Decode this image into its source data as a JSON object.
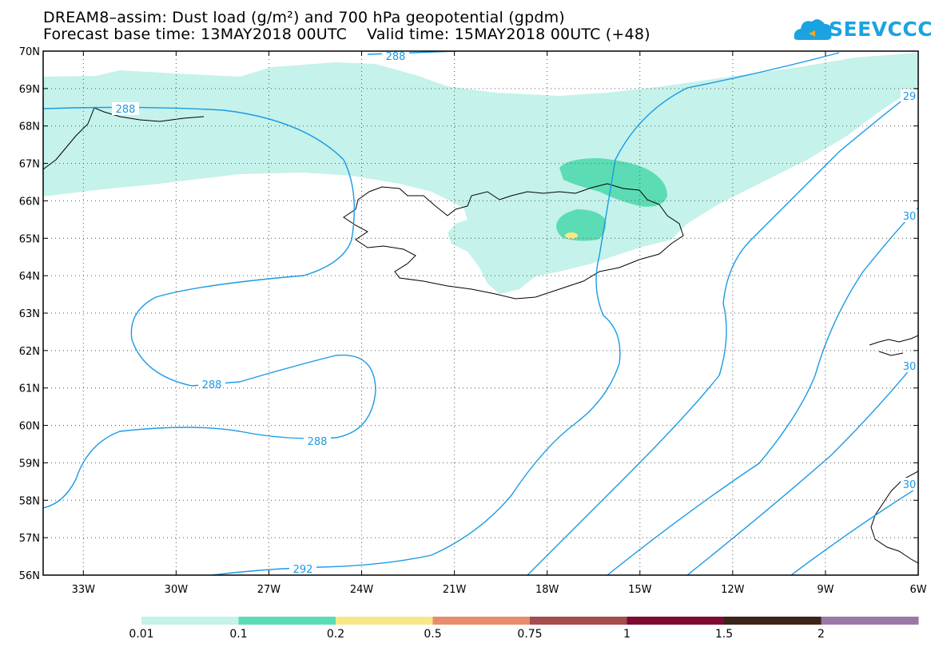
{
  "title_line1": "DREAM8–assim: Dust load (g/m²) and 700 hPa geopotential (gpdm)",
  "title_line2": "Forecast base time: 13MAY2018 00UTC    Valid time: 15MAY2018 00UTC (+48)",
  "logo_text": "SEEVCCC",
  "lat_labels": [
    "70N",
    "69N",
    "68N",
    "67N",
    "66N",
    "65N",
    "64N",
    "63N",
    "62N",
    "61N",
    "60N",
    "59N",
    "58N",
    "57N",
    "56N"
  ],
  "lon_labels": [
    "33W",
    "30W",
    "27W",
    "24W",
    "21W",
    "18W",
    "15W",
    "12W",
    "9W",
    "6W"
  ],
  "contour_labels": [
    "288",
    "288",
    "288",
    "288",
    "292",
    "29",
    "30",
    "30",
    "30"
  ],
  "colorbar": {
    "colors": [
      "#c5f2ea",
      "#5cdcb4",
      "#f6e886",
      "#e98c6e",
      "#a54c4c",
      "#7e0a32",
      "#3c2418",
      "#9a78a8"
    ],
    "labels": [
      "0.01",
      "0.1",
      "0.2",
      "0.5",
      "0.75",
      "1",
      "1.5",
      "2"
    ]
  }
}
